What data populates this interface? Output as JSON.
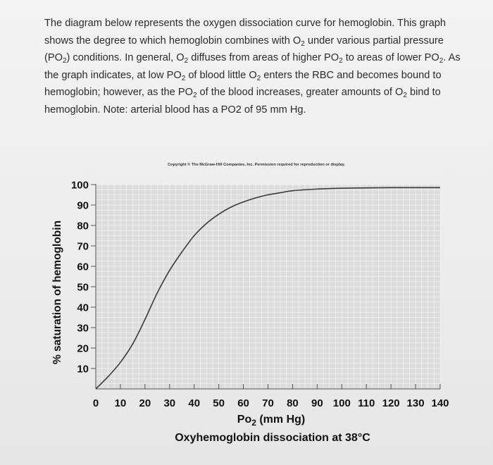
{
  "intro": {
    "s1": "The diagram below represents the oxygen dissociation curve for hemoglobin. This graph shows the degree to which hemoglobin combines with O",
    "s2": " under various partial pressure (PO",
    "s3": ") conditions. In general, O",
    "s4": " diffuses from areas of higher PO",
    "s5": " to areas of lower PO",
    "s6": ". As the graph indicates, at low PO",
    "s7": " of blood little O",
    "s8": " enters the RBC and becomes bound to hemoglobin; however, as the PO",
    "s9": " of the blood increases, greater amounts of O",
    "s10": " bind to hemoglobin. Note: arterial blood has a PO2 of 95 mm Hg.",
    "subscript": "2"
  },
  "chart_data": {
    "type": "line",
    "title": "Oxyhemoglobin dissociation at 38°C",
    "copyright": "Copyright © The McGraw-Hill Companies, Inc. Permission required for reproduction or display.",
    "xlabel_main": "Po",
    "xlabel_sub": "2",
    "xlabel_unit": " (mm Hg)",
    "ylabel": "% saturation of hemoglobin",
    "xlim": [
      0,
      140
    ],
    "ylim": [
      0,
      100
    ],
    "xticks": [
      0,
      10,
      20,
      30,
      40,
      50,
      60,
      70,
      80,
      90,
      100,
      110,
      120,
      130,
      140
    ],
    "yticks": [
      10,
      20,
      30,
      40,
      50,
      60,
      70,
      80,
      90,
      100
    ],
    "grid": true,
    "series": [
      {
        "x": [
          0,
          5,
          10,
          15,
          20,
          25,
          30,
          35,
          40,
          45,
          50,
          55,
          60,
          65,
          70,
          75,
          80,
          90,
          100,
          110,
          120,
          130,
          140
        ],
        "y": [
          0,
          6,
          13,
          22,
          34,
          47,
          58,
          67,
          75,
          81,
          85.5,
          89,
          91.5,
          93.5,
          95,
          96,
          97,
          97.8,
          98.2,
          98.4,
          98.5,
          98.5,
          98.5
        ]
      }
    ],
    "colors": {
      "plot_bg": "#dcdcdc",
      "grid": "#f4f4f4",
      "line": "#3a3a3a"
    }
  }
}
